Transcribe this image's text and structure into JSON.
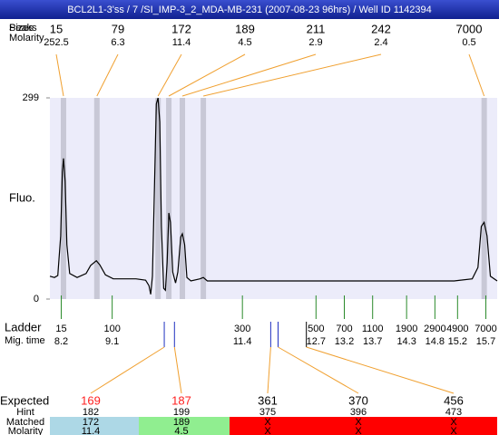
{
  "header": {
    "title": "BCL2L1-3'ss / 7 /SI_IMP-3_2_MDA-MB-231 (2007-08-23 96hrs) / Well ID 1142394"
  },
  "chart_data": {
    "type": "line",
    "y_label": "Fluo.",
    "xlim": [
      8.0,
      15.9
    ],
    "ylim": [
      0,
      299
    ],
    "yticks": [
      0,
      299
    ],
    "color": "#000000",
    "x": [
      8.0,
      8.08,
      8.14,
      8.19,
      8.22,
      8.24,
      8.27,
      8.3,
      8.35,
      8.48,
      8.64,
      8.72,
      8.82,
      8.88,
      8.98,
      9.12,
      9.52,
      9.69,
      9.75,
      9.78,
      9.81,
      9.85,
      9.88,
      9.91,
      9.94,
      9.97,
      10.01,
      10.04,
      10.07,
      10.1,
      10.13,
      10.17,
      10.22,
      10.26,
      10.31,
      10.34,
      10.38,
      10.42,
      10.49,
      10.65,
      10.71,
      10.78,
      11.93,
      13.54,
      15.14,
      15.46,
      15.56,
      15.62,
      15.67,
      15.72,
      15.78,
      15.9
    ],
    "values": [
      34,
      32,
      35,
      94,
      189,
      209,
      175,
      81,
      38,
      32,
      38,
      50,
      57,
      51,
      36,
      30,
      30,
      28,
      20,
      7,
      34,
      175,
      290,
      299,
      263,
      108,
      16,
      13,
      54,
      128,
      114,
      40,
      24,
      40,
      92,
      97,
      81,
      32,
      27,
      30,
      32,
      27,
      27,
      27,
      27,
      30,
      47,
      108,
      114,
      94,
      34,
      27
    ]
  },
  "peaks": {
    "labels": [
      "Sizes",
      "Peaks"
    ],
    "molarity_label": "Molarity",
    "items": [
      {
        "size": 15,
        "molarity": 252.5,
        "time": 8.24
      },
      {
        "size": 79,
        "molarity": 6.3,
        "time": 8.83
      },
      {
        "size": 172,
        "molarity": 11.4,
        "time": 9.91
      },
      {
        "size": 189,
        "molarity": 4.5,
        "time": 10.1
      },
      {
        "size": 211,
        "molarity": 2.9,
        "time": 10.34
      },
      {
        "size": 242,
        "molarity": 2.4,
        "time": 10.71
      },
      {
        "size": 7000,
        "molarity": 0.5,
        "time": 15.67
      }
    ]
  },
  "ladder": {
    "label": "Ladder",
    "time_label": "Mig. time",
    "items": [
      {
        "size": 15,
        "time": 8.2
      },
      {
        "size": 100,
        "time": 9.1
      },
      {
        "size": 300,
        "time": 11.4
      },
      {
        "size": 500,
        "time": 12.7
      },
      {
        "size": 700,
        "time": 13.2
      },
      {
        "size": 1100,
        "time": 13.7
      },
      {
        "size": 1900,
        "time": 14.3
      },
      {
        "size": 2900,
        "time": 14.8
      },
      {
        "size": 4900,
        "time": 15.2
      },
      {
        "size": 7000,
        "time": 15.7
      }
    ]
  },
  "expected": {
    "labels": [
      "Expected",
      "Hint",
      "Matched",
      "Molarity"
    ],
    "items": [
      {
        "expected": 169,
        "hint": 182,
        "matched": 172,
        "molarity": 11.4,
        "time": 10.02,
        "color": "#ff2020",
        "marker_color": "#2030c0",
        "background": "#add8e6"
      },
      {
        "expected": 187,
        "hint": 199,
        "matched": 189,
        "molarity": 4.5,
        "time": 10.2,
        "color": "#ff2020",
        "marker_color": "#2030c0",
        "background": "#90ee90"
      },
      {
        "expected": 361,
        "hint": 375,
        "matched": "X",
        "molarity": "X",
        "time": 11.9,
        "color": "#000000",
        "marker_color": "#2030c0",
        "background": "#ff0000"
      },
      {
        "expected": 370,
        "hint": 396,
        "matched": "X",
        "molarity": "X",
        "time": 12.03,
        "color": "#000000",
        "marker_color": "#2030c0",
        "background": "#ff0000"
      },
      {
        "expected": 456,
        "hint": 473,
        "matched": "X",
        "molarity": "X",
        "time": 12.53,
        "color": "#000000",
        "marker_color": "#000000",
        "background": "#ff0000"
      }
    ]
  }
}
